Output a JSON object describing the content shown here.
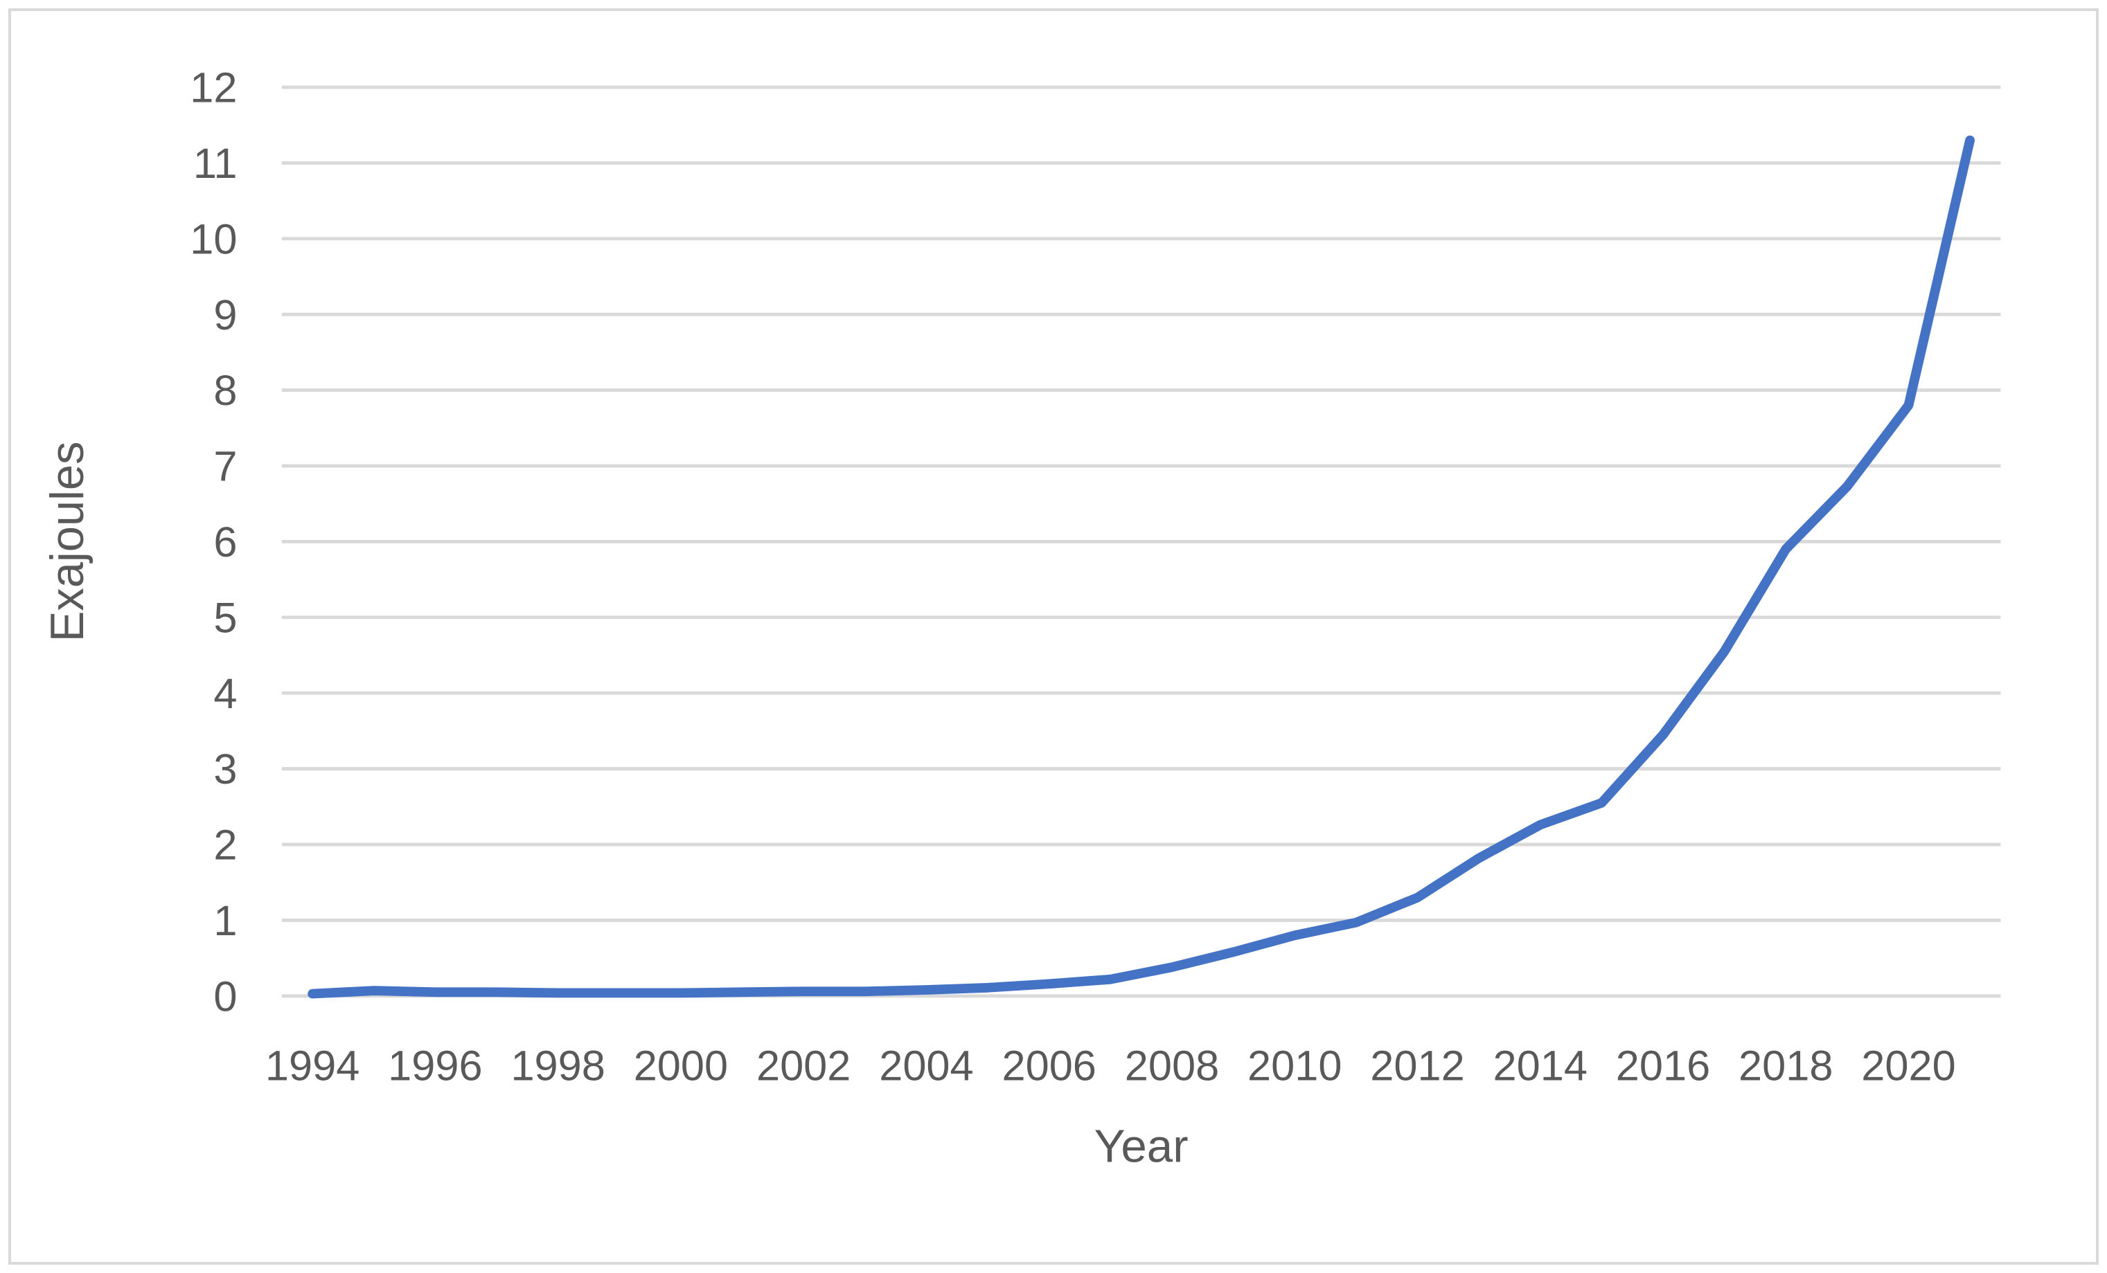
{
  "chart_data": {
    "type": "line",
    "title": "",
    "xlabel": "Year",
    "ylabel": "Exajoules",
    "x": [
      1994,
      1995,
      1996,
      1997,
      1998,
      1999,
      2000,
      2001,
      2002,
      2003,
      2004,
      2005,
      2006,
      2007,
      2008,
      2009,
      2010,
      2011,
      2012,
      2013,
      2014,
      2015,
      2016,
      2017,
      2018,
      2019,
      2020,
      2021
    ],
    "series": [
      {
        "name": "Exajoules",
        "values": [
          0.03,
          0.07,
          0.05,
          0.05,
          0.04,
          0.04,
          0.04,
          0.05,
          0.06,
          0.06,
          0.08,
          0.11,
          0.16,
          0.22,
          0.38,
          0.58,
          0.8,
          0.97,
          1.3,
          1.82,
          2.26,
          2.55,
          3.45,
          4.55,
          5.9,
          6.73,
          7.8,
          11.3
        ]
      }
    ],
    "ylim": [
      0,
      12
    ],
    "y_ticks": [
      0,
      1,
      2,
      3,
      4,
      5,
      6,
      7,
      8,
      9,
      10,
      11,
      12
    ],
    "x_tick_labels": [
      "1994",
      "1996",
      "1998",
      "2000",
      "2002",
      "2004",
      "2006",
      "2008",
      "2010",
      "2012",
      "2014",
      "2016",
      "2018",
      "2020"
    ],
    "grid": "horizontal-only",
    "legend_position": "none"
  },
  "colors": {
    "line": "#4472C4",
    "gridline": "#d9d9d9",
    "tick_text": "#595959",
    "frame_border": "#d9d9d9",
    "background": "#ffffff"
  }
}
